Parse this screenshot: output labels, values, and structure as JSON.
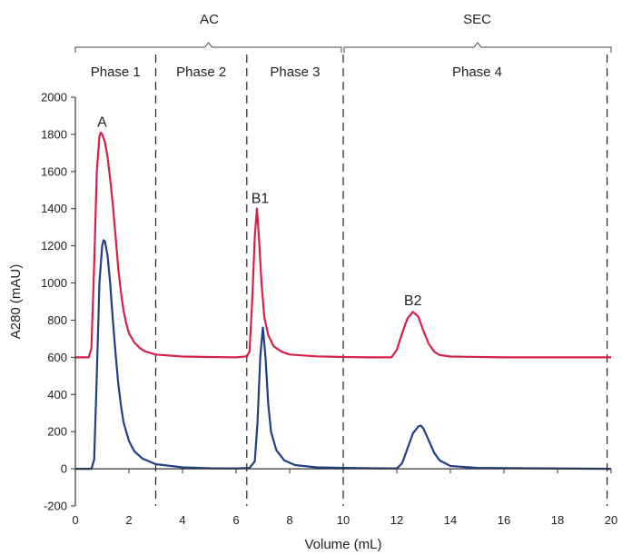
{
  "chart_data": {
    "type": "line",
    "title": "",
    "xlabel": "Volume (mL)",
    "ylabel": "A280 (mAU)",
    "xlim": [
      0,
      20
    ],
    "ylim": [
      -200,
      2000
    ],
    "xticks": [
      0,
      2,
      4,
      6,
      8,
      10,
      12,
      14,
      16,
      18,
      20
    ],
    "yticks": [
      -200,
      0,
      200,
      400,
      600,
      800,
      1000,
      1200,
      1400,
      1600,
      1800,
      2000
    ],
    "grid": false,
    "legend": "none",
    "groups": [
      {
        "label": "AC",
        "from": 0,
        "to": 10
      },
      {
        "label": "SEC",
        "from": 10,
        "to": 20
      }
    ],
    "phases": [
      {
        "label": "Phase 1",
        "from": 0,
        "to": 3
      },
      {
        "label": "Phase 2",
        "from": 3,
        "to": 6.4
      },
      {
        "label": "Phase 3",
        "from": 6.4,
        "to": 10
      },
      {
        "label": "Phase 4",
        "from": 10,
        "to": 20
      }
    ],
    "dividers": [
      3,
      6.4,
      10,
      19.85
    ],
    "annotations": [
      {
        "text": "A",
        "x": 1.0,
        "y": 1840
      },
      {
        "text": "B1",
        "x": 6.9,
        "y": 1430
      },
      {
        "text": "B2",
        "x": 12.6,
        "y": 880
      }
    ],
    "series": [
      {
        "color": "#d6204a",
        "points": [
          [
            0,
            600
          ],
          [
            0.5,
            600
          ],
          [
            0.6,
            650
          ],
          [
            0.7,
            1100
          ],
          [
            0.8,
            1600
          ],
          [
            0.9,
            1790
          ],
          [
            0.95,
            1810
          ],
          [
            1.0,
            1800
          ],
          [
            1.1,
            1760
          ],
          [
            1.2,
            1680
          ],
          [
            1.3,
            1560
          ],
          [
            1.4,
            1420
          ],
          [
            1.5,
            1250
          ],
          [
            1.6,
            1080
          ],
          [
            1.7,
            950
          ],
          [
            1.8,
            850
          ],
          [
            1.9,
            780
          ],
          [
            2.0,
            730
          ],
          [
            2.2,
            680
          ],
          [
            2.4,
            650
          ],
          [
            2.6,
            632
          ],
          [
            3.0,
            615
          ],
          [
            4.0,
            604
          ],
          [
            5.0,
            602
          ],
          [
            6.0,
            600
          ],
          [
            6.4,
            605
          ],
          [
            6.5,
            630
          ],
          [
            6.6,
            900
          ],
          [
            6.7,
            1250
          ],
          [
            6.78,
            1400
          ],
          [
            6.85,
            1250
          ],
          [
            6.95,
            1000
          ],
          [
            7.05,
            820
          ],
          [
            7.2,
            720
          ],
          [
            7.4,
            660
          ],
          [
            7.7,
            630
          ],
          [
            8.0,
            615
          ],
          [
            9.0,
            605
          ],
          [
            10.0,
            602
          ],
          [
            11.0,
            600
          ],
          [
            11.8,
            600
          ],
          [
            12.0,
            640
          ],
          [
            12.2,
            730
          ],
          [
            12.4,
            810
          ],
          [
            12.6,
            845
          ],
          [
            12.8,
            820
          ],
          [
            13.0,
            740
          ],
          [
            13.2,
            670
          ],
          [
            13.4,
            630
          ],
          [
            13.6,
            612
          ],
          [
            14.0,
            604
          ],
          [
            16.0,
            600
          ],
          [
            20.0,
            600
          ]
        ]
      },
      {
        "color": "#1f3f86",
        "points": [
          [
            0,
            0
          ],
          [
            0.6,
            0
          ],
          [
            0.7,
            50
          ],
          [
            0.8,
            500
          ],
          [
            0.9,
            1000
          ],
          [
            1.0,
            1200
          ],
          [
            1.05,
            1230
          ],
          [
            1.1,
            1225
          ],
          [
            1.2,
            1150
          ],
          [
            1.3,
            1000
          ],
          [
            1.4,
            800
          ],
          [
            1.5,
            620
          ],
          [
            1.6,
            460
          ],
          [
            1.7,
            340
          ],
          [
            1.8,
            250
          ],
          [
            2.0,
            150
          ],
          [
            2.2,
            95
          ],
          [
            2.5,
            55
          ],
          [
            3.0,
            25
          ],
          [
            4.0,
            8
          ],
          [
            5.0,
            3
          ],
          [
            6.0,
            2
          ],
          [
            6.5,
            5
          ],
          [
            6.7,
            40
          ],
          [
            6.8,
            250
          ],
          [
            6.9,
            600
          ],
          [
            7.0,
            760
          ],
          [
            7.1,
            600
          ],
          [
            7.2,
            350
          ],
          [
            7.3,
            200
          ],
          [
            7.5,
            100
          ],
          [
            7.8,
            45
          ],
          [
            8.2,
            20
          ],
          [
            9.0,
            8
          ],
          [
            10.0,
            5
          ],
          [
            11.0,
            3
          ],
          [
            12.0,
            2
          ],
          [
            12.2,
            30
          ],
          [
            12.4,
            110
          ],
          [
            12.6,
            190
          ],
          [
            12.8,
            228
          ],
          [
            12.9,
            232
          ],
          [
            13.0,
            215
          ],
          [
            13.2,
            150
          ],
          [
            13.4,
            85
          ],
          [
            13.6,
            45
          ],
          [
            14.0,
            15
          ],
          [
            15.0,
            5
          ],
          [
            20.0,
            0
          ]
        ]
      }
    ]
  }
}
